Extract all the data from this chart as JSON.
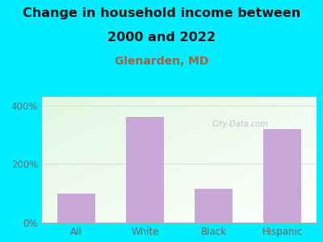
{
  "title_line1": "Change in household income between",
  "title_line2": "2000 and 2022",
  "subtitle": "Glenarden, MD",
  "categories": [
    "All",
    "White",
    "Black",
    "Hispanic"
  ],
  "values": [
    100,
    360,
    115,
    320
  ],
  "bar_color": "#c8a8d8",
  "background_outer": "#00eeff",
  "title_fontsize": 11.5,
  "title_color": "#111111",
  "subtitle_fontsize": 10,
  "subtitle_color": "#996644",
  "tick_label_color": "#666666",
  "yticks": [
    0,
    200,
    400
  ],
  "ytick_labels": [
    "0%",
    "200%",
    "400%"
  ],
  "ylim": [
    0,
    430
  ],
  "watermark": "City-Data.com",
  "grid_color": "#dddddd"
}
